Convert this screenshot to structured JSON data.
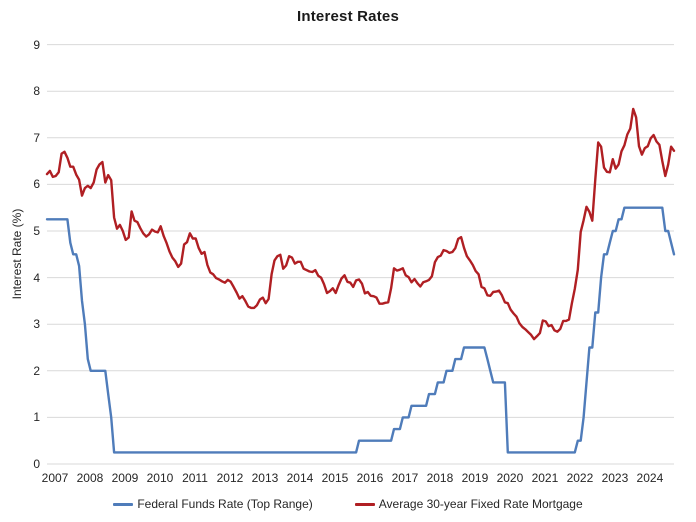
{
  "chart_data": {
    "type": "line",
    "title": "Interest Rates",
    "xlabel": "",
    "ylabel": "Interest Rate (%)",
    "ylim": [
      0,
      9
    ],
    "yticks": [
      0,
      1,
      2,
      3,
      4,
      5,
      6,
      7,
      8,
      9
    ],
    "grid": true,
    "grid_color": "#d9d9d9",
    "legend_position": "bottom",
    "x_start_year": 2007,
    "x_frequency": "monthly",
    "categories": [
      "2007",
      "2008",
      "2009",
      "2010",
      "2011",
      "2012",
      "2013",
      "2014",
      "2015",
      "2016",
      "2017",
      "2018",
      "2019",
      "2020",
      "2021",
      "2022",
      "2023",
      "2024"
    ],
    "series": [
      {
        "name": "Federal Funds Rate (Top Range)",
        "color": "#4f7cba",
        "values": [
          5.25,
          5.25,
          5.25,
          5.25,
          5.25,
          5.25,
          5.25,
          5.25,
          4.75,
          4.5,
          4.5,
          4.25,
          3.5,
          3.0,
          2.25,
          2.0,
          2.0,
          2.0,
          2.0,
          2.0,
          2.0,
          1.5,
          1.0,
          0.25,
          0.25,
          0.25,
          0.25,
          0.25,
          0.25,
          0.25,
          0.25,
          0.25,
          0.25,
          0.25,
          0.25,
          0.25,
          0.25,
          0.25,
          0.25,
          0.25,
          0.25,
          0.25,
          0.25,
          0.25,
          0.25,
          0.25,
          0.25,
          0.25,
          0.25,
          0.25,
          0.25,
          0.25,
          0.25,
          0.25,
          0.25,
          0.25,
          0.25,
          0.25,
          0.25,
          0.25,
          0.25,
          0.25,
          0.25,
          0.25,
          0.25,
          0.25,
          0.25,
          0.25,
          0.25,
          0.25,
          0.25,
          0.25,
          0.25,
          0.25,
          0.25,
          0.25,
          0.25,
          0.25,
          0.25,
          0.25,
          0.25,
          0.25,
          0.25,
          0.25,
          0.25,
          0.25,
          0.25,
          0.25,
          0.25,
          0.25,
          0.25,
          0.25,
          0.25,
          0.25,
          0.25,
          0.25,
          0.25,
          0.25,
          0.25,
          0.25,
          0.25,
          0.25,
          0.25,
          0.25,
          0.25,
          0.25,
          0.25,
          0.5,
          0.5,
          0.5,
          0.5,
          0.5,
          0.5,
          0.5,
          0.5,
          0.5,
          0.5,
          0.5,
          0.5,
          0.75,
          0.75,
          0.75,
          1.0,
          1.0,
          1.0,
          1.25,
          1.25,
          1.25,
          1.25,
          1.25,
          1.25,
          1.5,
          1.5,
          1.5,
          1.75,
          1.75,
          1.75,
          2.0,
          2.0,
          2.0,
          2.25,
          2.25,
          2.25,
          2.5,
          2.5,
          2.5,
          2.5,
          2.5,
          2.5,
          2.5,
          2.5,
          2.25,
          2.0,
          1.75,
          1.75,
          1.75,
          1.75,
          1.75,
          0.25,
          0.25,
          0.25,
          0.25,
          0.25,
          0.25,
          0.25,
          0.25,
          0.25,
          0.25,
          0.25,
          0.25,
          0.25,
          0.25,
          0.25,
          0.25,
          0.25,
          0.25,
          0.25,
          0.25,
          0.25,
          0.25,
          0.25,
          0.25,
          0.5,
          0.5,
          1.0,
          1.75,
          2.5,
          2.5,
          3.25,
          3.25,
          4.0,
          4.5,
          4.5,
          4.75,
          5.0,
          5.0,
          5.25,
          5.25,
          5.5,
          5.5,
          5.5,
          5.5,
          5.5,
          5.5,
          5.5,
          5.5,
          5.5,
          5.5,
          5.5,
          5.5,
          5.5,
          5.5,
          5.0,
          5.0,
          4.75,
          4.5
        ]
      },
      {
        "name": "Average 30-year Fixed Rate Mortgage",
        "color": "#b01f23",
        "values": [
          6.22,
          6.29,
          6.16,
          6.18,
          6.26,
          6.66,
          6.7,
          6.57,
          6.38,
          6.38,
          6.21,
          6.1,
          5.76,
          5.92,
          5.97,
          5.92,
          6.04,
          6.32,
          6.43,
          6.48,
          6.04,
          6.2,
          6.09,
          5.29,
          5.05,
          5.13,
          5.0,
          4.81,
          4.86,
          5.42,
          5.22,
          5.19,
          5.06,
          4.95,
          4.88,
          4.93,
          5.03,
          4.99,
          4.97,
          5.1,
          4.89,
          4.74,
          4.56,
          4.43,
          4.35,
          4.23,
          4.3,
          4.71,
          4.76,
          4.95,
          4.84,
          4.84,
          4.64,
          4.51,
          4.55,
          4.27,
          4.11,
          4.07,
          3.99,
          3.96,
          3.92,
          3.89,
          3.95,
          3.91,
          3.8,
          3.68,
          3.55,
          3.6,
          3.5,
          3.38,
          3.35,
          3.35,
          3.41,
          3.53,
          3.57,
          3.45,
          3.54,
          4.07,
          4.37,
          4.46,
          4.49,
          4.19,
          4.26,
          4.46,
          4.43,
          4.3,
          4.34,
          4.34,
          4.19,
          4.16,
          4.13,
          4.12,
          4.16,
          4.04,
          4.0,
          3.86,
          3.67,
          3.71,
          3.77,
          3.67,
          3.84,
          3.98,
          4.05,
          3.91,
          3.89,
          3.8,
          3.94,
          3.96,
          3.87,
          3.66,
          3.69,
          3.61,
          3.6,
          3.57,
          3.44,
          3.44,
          3.46,
          3.47,
          3.77,
          4.2,
          4.15,
          4.17,
          4.2,
          4.05,
          4.01,
          3.9,
          3.97,
          3.88,
          3.81,
          3.9,
          3.92,
          3.95,
          4.03,
          4.33,
          4.44,
          4.47,
          4.59,
          4.57,
          4.53,
          4.55,
          4.63,
          4.83,
          4.87,
          4.64,
          4.46,
          4.37,
          4.27,
          4.14,
          4.07,
          3.8,
          3.77,
          3.62,
          3.61,
          3.69,
          3.7,
          3.72,
          3.62,
          3.47,
          3.45,
          3.31,
          3.23,
          3.16,
          3.02,
          2.94,
          2.89,
          2.83,
          2.77,
          2.68,
          2.74,
          2.81,
          3.08,
          3.06,
          2.96,
          2.98,
          2.87,
          2.84,
          2.9,
          3.07,
          3.07,
          3.1,
          3.45,
          3.76,
          4.17,
          4.98,
          5.23,
          5.52,
          5.41,
          5.22,
          6.11,
          6.9,
          6.81,
          6.36,
          6.27,
          6.26,
          6.54,
          6.34,
          6.43,
          6.71,
          6.84,
          7.07,
          7.2,
          7.62,
          7.44,
          6.82,
          6.64,
          6.78,
          6.82,
          6.99,
          7.06,
          6.92,
          6.85,
          6.5,
          6.18,
          6.43,
          6.81,
          6.72
        ]
      }
    ]
  }
}
